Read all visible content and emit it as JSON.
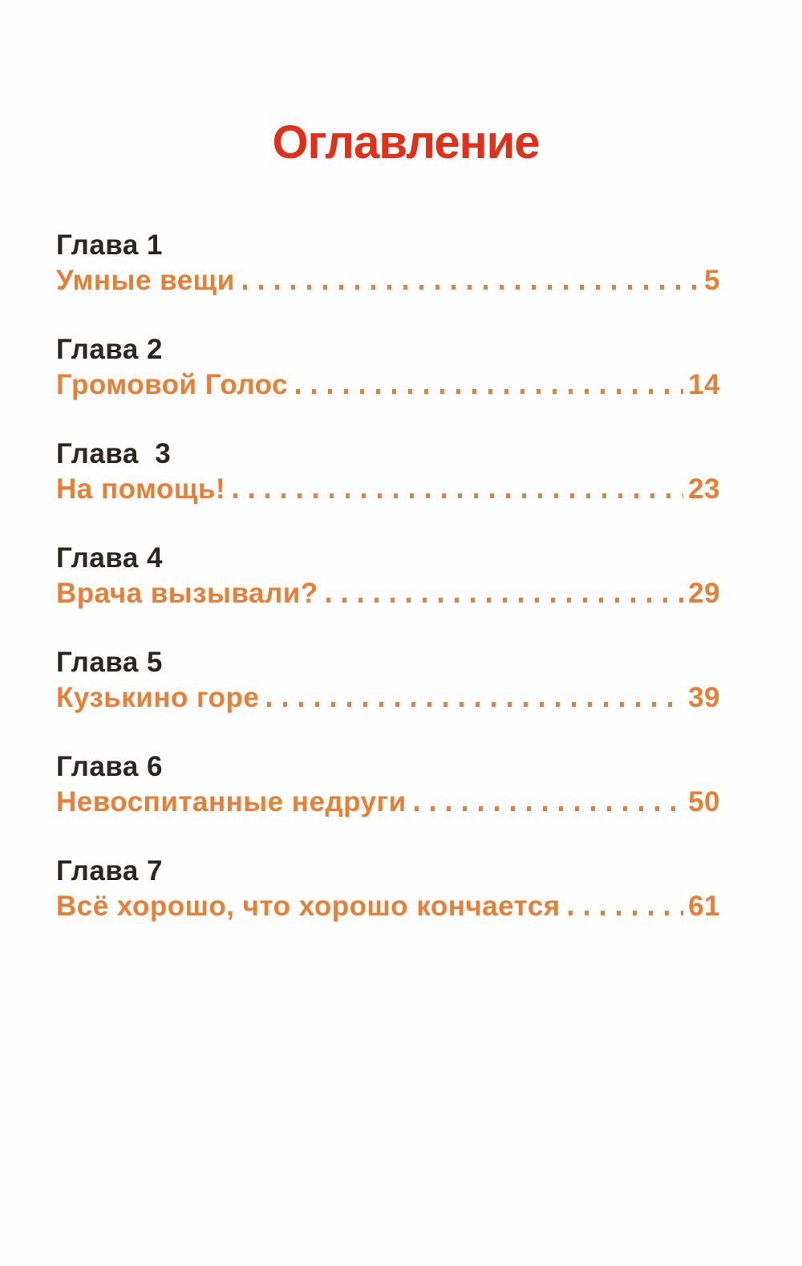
{
  "colors": {
    "paper": "#fefefe",
    "title": "#e23018",
    "chapter": "#2a261f",
    "entry": "#e87f35"
  },
  "header": {
    "title": "Оглавление"
  },
  "toc": {
    "entries": [
      {
        "chapter": "Глава 1",
        "title": "Умные вещи",
        "page": "5"
      },
      {
        "chapter": "Глава 2",
        "title": "Громовой Голос",
        "page": "14"
      },
      {
        "chapter": "Глава  3",
        "title": "На помощь!",
        "page": "23"
      },
      {
        "chapter": "Глава 4",
        "title": "Врача вызывали?",
        "page": "29"
      },
      {
        "chapter": "Глава 5",
        "title": "Кузькино горе",
        "page": "39"
      },
      {
        "chapter": "Глава 6",
        "title": "Невоспитанные недруги",
        "page": "50"
      },
      {
        "chapter": "Глава 7",
        "title": "Всё хорошо, что хорошо кончается",
        "page": "61"
      }
    ]
  }
}
